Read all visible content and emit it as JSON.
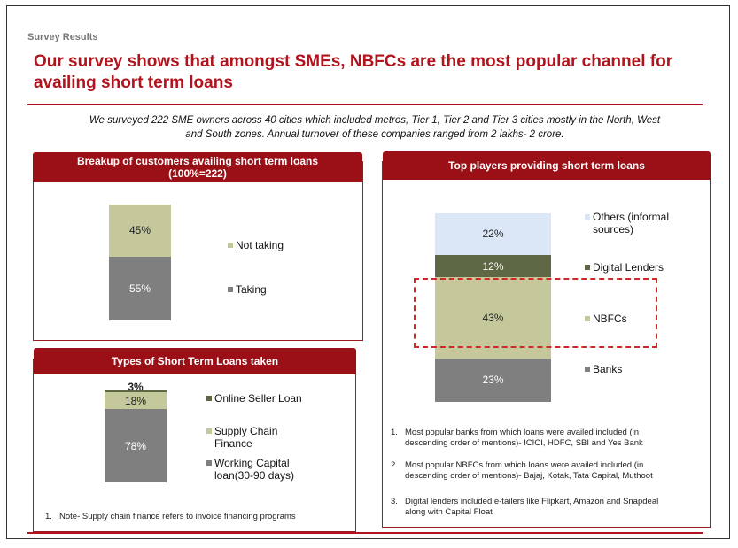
{
  "section_label": "Survey Results",
  "headline": "Our survey shows that amongst SMEs, NBFCs are the most popular channel for availing short term loans",
  "intro": [
    "We surveyed 222 SME owners across 40 cities which included metros, Tier 1, Tier 2 and Tier 3 cities mostly in the North, West",
    "and South zones. Annual turnover of these companies ranged from 2 lakhs- 2 crore."
  ],
  "panel1": {
    "title_line1": "Breakup of customers availing  short term loans",
    "title_line2": "(100%=222)"
  },
  "panel2": {
    "title": "Types of Short Term Loans taken",
    "note_num": "1.",
    "note": "Note- Supply chain finance refers to invoice financing programs"
  },
  "panel3": {
    "title": "Top players providing  short term loans",
    "notes": [
      {
        "num": "1.",
        "line1": "Most popular banks from which loans were availed included (in",
        "line2": "descending order of mentions)- ICICI, HDFC, SBI and Yes Bank"
      },
      {
        "num": "2.",
        "line1": "Most popular NBFCs from which loans were availed included (in",
        "line2": "descending order of mentions)- Bajaj, Kotak, Tata Capital, Muthoot"
      },
      {
        "num": "3.",
        "line1": "Digital lenders included e-tailers like Flipkart, Amazon and Snapdeal",
        "line2": "along with Capital Float"
      }
    ]
  },
  "chart_data": [
    {
      "type": "bar",
      "stacked": true,
      "title": "Breakup of customers availing  short term loans (100%=222)",
      "series": [
        {
          "name": "Taking",
          "value": 55,
          "label": "55%",
          "color": "#7f7f7f",
          "text_color": "#ffffff"
        },
        {
          "name": "Not taking",
          "value": 45,
          "label": "45%",
          "color": "#c4c89b",
          "text_color": "#222222"
        }
      ],
      "ylim": [
        0,
        100
      ]
    },
    {
      "type": "bar",
      "stacked": true,
      "title": "Types of Short Term Loans taken",
      "series": [
        {
          "name": "Working Capital loan(30-90 days)",
          "value": 78,
          "label": "78%",
          "color": "#7f7f7f",
          "text_color": "#ffffff"
        },
        {
          "name": "Supply Chain Finance",
          "value": 18,
          "label": "18%",
          "color": "#c4c89b",
          "text_color": "#222222"
        },
        {
          "name": "Online Seller Loan",
          "value": 3,
          "label": "3%",
          "color": "#5e6744",
          "text_color": "#222222"
        }
      ],
      "ylim": [
        0,
        100
      ]
    },
    {
      "type": "bar",
      "stacked": true,
      "title": "Top players providing  short term loans",
      "series": [
        {
          "name": "Banks",
          "value": 23,
          "label": "23%",
          "color": "#7f7f7f",
          "text_color": "#ffffff"
        },
        {
          "name": "NBFCs",
          "value": 43,
          "label": "43%",
          "color": "#c4c89b",
          "text_color": "#222222"
        },
        {
          "name": "Digital Lenders",
          "value": 12,
          "label": "12%",
          "color": "#5e6744",
          "text_color": "#ffffff"
        },
        {
          "name": "Others (informal sources)",
          "value": 22,
          "label": "22%",
          "color": "#dbe6f7",
          "text_color": "#222222"
        }
      ],
      "highlight": "NBFCs",
      "highlight_color": "#d02828",
      "ylim": [
        0,
        100
      ]
    }
  ]
}
